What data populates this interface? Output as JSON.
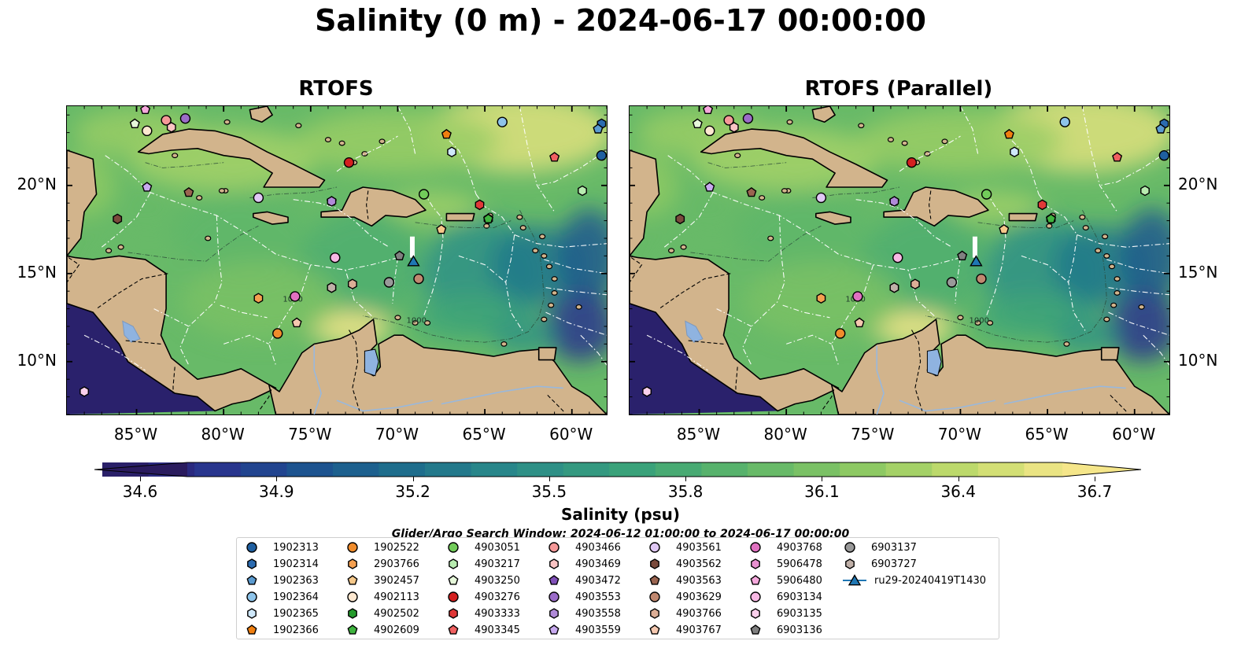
{
  "page": {
    "title": "Salinity (0 m) - 2024-06-17 00:00:00"
  },
  "panels": [
    {
      "title": "RTOFS"
    },
    {
      "title": "RTOFS (Parallel)"
    }
  ],
  "axes": {
    "lon_ticks": [
      "85°W",
      "80°W",
      "75°W",
      "70°W",
      "65°W",
      "60°W"
    ],
    "lat_ticks": [
      "20°N",
      "15°N",
      "10°N"
    ]
  },
  "map_extent": {
    "lon": [
      -89,
      -58
    ],
    "lat": [
      7,
      24.5
    ]
  },
  "colorbar": {
    "label": "Salinity (psu)",
    "ticks": [
      "34.6",
      "34.9",
      "35.2",
      "35.5",
      "35.8",
      "36.1",
      "36.4",
      "36.7"
    ],
    "range": [
      34.6,
      36.7
    ],
    "colormap": "haline",
    "extend": "both"
  },
  "search_window": "Glider/Argo Search Window: 2024-06-12 01:00:00 to 2024-06-17 00:00:00",
  "contour_labels": [
    "1000",
    "1000"
  ],
  "floats": [
    {
      "id": "1902313",
      "marker": "circle",
      "color": "#1f5fa0",
      "lon": -58.3,
      "lat": 21.7
    },
    {
      "id": "1902314",
      "marker": "hexagon",
      "color": "#2b6bb0",
      "lon": -58.3,
      "lat": 23.5
    },
    {
      "id": "1902363",
      "marker": "pentagon",
      "color": "#5b9bd0",
      "lon": -58.5,
      "lat": 23.2
    },
    {
      "id": "1902364",
      "marker": "circle",
      "color": "#8ec4ea",
      "lon": -64.0,
      "lat": 23.6
    },
    {
      "id": "1902365",
      "marker": "hexagon",
      "color": "#cfe8fa",
      "lon": -66.9,
      "lat": 21.9
    },
    {
      "id": "1902366",
      "marker": "pentagon",
      "color": "#f07f10",
      "lon": -67.2,
      "lat": 22.9
    },
    {
      "id": "1902522",
      "marker": "circle",
      "color": "#f08c2c",
      "lon": -76.9,
      "lat": 11.6
    },
    {
      "id": "2903766",
      "marker": "hexagon",
      "color": "#f5a050",
      "lon": -78.0,
      "lat": 13.6
    },
    {
      "id": "3902457",
      "marker": "pentagon",
      "color": "#f5c88a",
      "lon": -67.5,
      "lat": 17.5
    },
    {
      "id": "4902113",
      "marker": "circle",
      "color": "#fde8d0",
      "lon": -84.4,
      "lat": 23.1
    },
    {
      "id": "4902502",
      "marker": "hexagon",
      "color": "#249a2c",
      "lon": -64.8,
      "lat": 18.1
    },
    {
      "id": "4902609",
      "marker": "pentagon",
      "color": "#3fb43f",
      "lon": -64.8,
      "lat": 18.1
    },
    {
      "id": "4903051",
      "marker": "circle",
      "color": "#72cc5a",
      "lon": -68.5,
      "lat": 19.5
    },
    {
      "id": "4903217",
      "marker": "hexagon",
      "color": "#b8ecb0",
      "lon": -59.4,
      "lat": 19.7
    },
    {
      "id": "4903250",
      "marker": "pentagon",
      "color": "#e6f8da",
      "lon": -85.1,
      "lat": 23.5
    },
    {
      "id": "4903276",
      "marker": "circle",
      "color": "#d42020",
      "lon": -72.8,
      "lat": 21.3
    },
    {
      "id": "4903333",
      "marker": "hexagon",
      "color": "#e03838",
      "lon": -65.3,
      "lat": 18.9
    },
    {
      "id": "4903345",
      "marker": "pentagon",
      "color": "#f06060",
      "lon": -61.0,
      "lat": 21.6
    },
    {
      "id": "4903466",
      "marker": "circle",
      "color": "#f59898",
      "lon": -83.3,
      "lat": 23.7
    },
    {
      "id": "4903469",
      "marker": "hexagon",
      "color": "#fbc4c4",
      "lon": -83.0,
      "lat": 23.3
    },
    {
      "id": "4903472",
      "marker": "pentagon",
      "color": "#8050b8",
      "lon": -73.8,
      "lat": 19.1
    },
    {
      "id": "4903553",
      "marker": "circle",
      "color": "#9b6cc8",
      "lon": -82.2,
      "lat": 23.8
    },
    {
      "id": "4903558",
      "marker": "hexagon",
      "color": "#b08ad8",
      "lon": -73.8,
      "lat": 19.1
    },
    {
      "id": "4903559",
      "marker": "pentagon",
      "color": "#c8aaf0",
      "lon": -84.4,
      "lat": 19.9
    },
    {
      "id": "4903561",
      "marker": "circle",
      "color": "#e0c8f5",
      "lon": -78.0,
      "lat": 19.3
    },
    {
      "id": "4903562",
      "marker": "hexagon",
      "color": "#7a4a3c",
      "lon": -86.1,
      "lat": 18.1
    },
    {
      "id": "4903563",
      "marker": "pentagon",
      "color": "#9a6450",
      "lon": -82.0,
      "lat": 19.6
    },
    {
      "id": "4903629",
      "marker": "circle",
      "color": "#c08870",
      "lon": -68.8,
      "lat": 14.7
    },
    {
      "id": "4903766",
      "marker": "hexagon",
      "color": "#dcae96",
      "lon": -72.6,
      "lat": 14.4
    },
    {
      "id": "4903767",
      "marker": "pentagon",
      "color": "#f5c8b0",
      "lon": -75.8,
      "lat": 12.2
    },
    {
      "id": "4903768",
      "marker": "circle",
      "color": "#e070c0",
      "lon": -75.9,
      "lat": 13.7
    },
    {
      "id": "5906478",
      "marker": "hexagon",
      "color": "#e890d0",
      "lon": -73.8,
      "lat": 14.2
    },
    {
      "id": "5906480",
      "marker": "pentagon",
      "color": "#f5a8dc",
      "lon": -84.5,
      "lat": 24.3
    },
    {
      "id": "6903134",
      "marker": "circle",
      "color": "#f8b8e4",
      "lon": -73.6,
      "lat": 15.9
    },
    {
      "id": "6903135",
      "marker": "hexagon",
      "color": "#fad0ec",
      "lon": -88.0,
      "lat": 8.3
    },
    {
      "id": "6903136",
      "marker": "pentagon",
      "color": "#808080",
      "lon": -69.9,
      "lat": 16.0
    },
    {
      "id": "6903137",
      "marker": "circle",
      "color": "#999999",
      "lon": -70.5,
      "lat": 14.5
    },
    {
      "id": "6903727",
      "marker": "hexagon",
      "color": "#c0b0a8",
      "lon": -73.8,
      "lat": 14.2
    },
    {
      "id": "ru29-20240419T1430",
      "marker": "triangle",
      "color": "#1f77b4",
      "lon": -69.1,
      "lat": 15.7
    }
  ],
  "colors": {
    "land": "#d2b48c",
    "lake": "#8fb3e0",
    "river": "#99b8dc",
    "ocean_low": "#2a1b5e",
    "ocean_high": "#f5e68a",
    "eez": "#ffffff"
  }
}
